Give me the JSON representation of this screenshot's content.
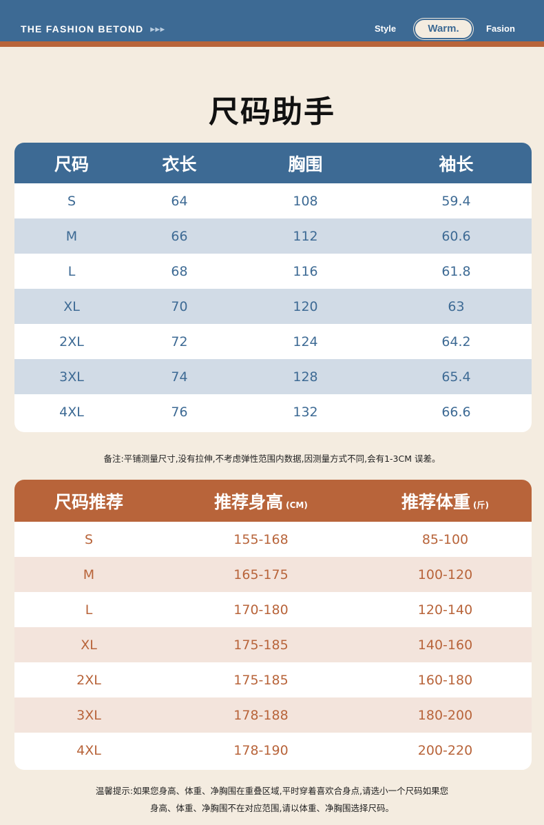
{
  "header": {
    "brand": "THE FASHION BETOND",
    "arrows": "▶▶▶",
    "nav": [
      "Style",
      "Warm.",
      "Fasion"
    ]
  },
  "title": "尺码助手",
  "size_table": {
    "headers": [
      "尺码",
      "衣长",
      "胸围",
      "袖长"
    ],
    "rows": [
      [
        "S",
        "64",
        "108",
        "59.4"
      ],
      [
        "M",
        "66",
        "112",
        "60.6"
      ],
      [
        "L",
        "68",
        "116",
        "61.8"
      ],
      [
        "XL",
        "70",
        "120",
        "63"
      ],
      [
        "2XL",
        "72",
        "124",
        "64.2"
      ],
      [
        "3XL",
        "74",
        "128",
        "65.4"
      ],
      [
        "4XL",
        "76",
        "132",
        "66.6"
      ]
    ]
  },
  "note": "备注:平铺测量尺寸,没有拉伸,不考虑弹性范围内数据,因测量方式不同,会有1-3CM 误差。",
  "recommend_table": {
    "headers": [
      "尺码推荐",
      "推荐身高",
      "推荐体重"
    ],
    "units": [
      "",
      "(CM)",
      "(斤)"
    ],
    "rows": [
      [
        "S",
        "155-168",
        "85-100"
      ],
      [
        "M",
        "165-175",
        "100-120"
      ],
      [
        "L",
        "170-180",
        "120-140"
      ],
      [
        "XL",
        "175-185",
        "140-160"
      ],
      [
        "2XL",
        "175-185",
        "160-180"
      ],
      [
        "3XL",
        "178-188",
        "180-200"
      ],
      [
        "4XL",
        "178-190",
        "200-220"
      ]
    ]
  },
  "tip": [
    "温馨提示:如果您身高、体重、净胸围在重叠区域,平时穿着喜欢合身点,请选小一个尺码如果您",
    "身高、体重、净胸围不在对应范围,请以体重、净胸围选择尺码。"
  ],
  "colors": {
    "blue": "#3d6a94",
    "orange": "#b8643a",
    "background": "#f4ece0"
  }
}
